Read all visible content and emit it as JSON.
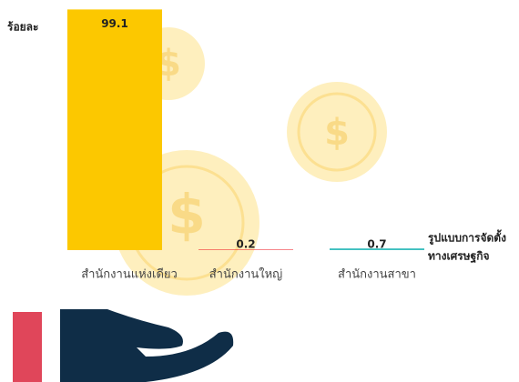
{
  "chart_data": {
    "type": "bar",
    "ylabel": "ร้อยละ",
    "xlabel_lines": [
      "รูปแบบการจัดตั้ง",
      "ทางเศรษฐกิจ"
    ],
    "categories": [
      "สำนักงานแห่งเดียว",
      "สำนักงานใหญ่",
      "สำนักงานสาขา"
    ],
    "values": [
      99.1,
      0.2,
      0.7
    ],
    "colors": [
      "#fcc800",
      "#ee1c25",
      "#3dbfbf"
    ],
    "ylim": [
      0,
      100
    ]
  }
}
